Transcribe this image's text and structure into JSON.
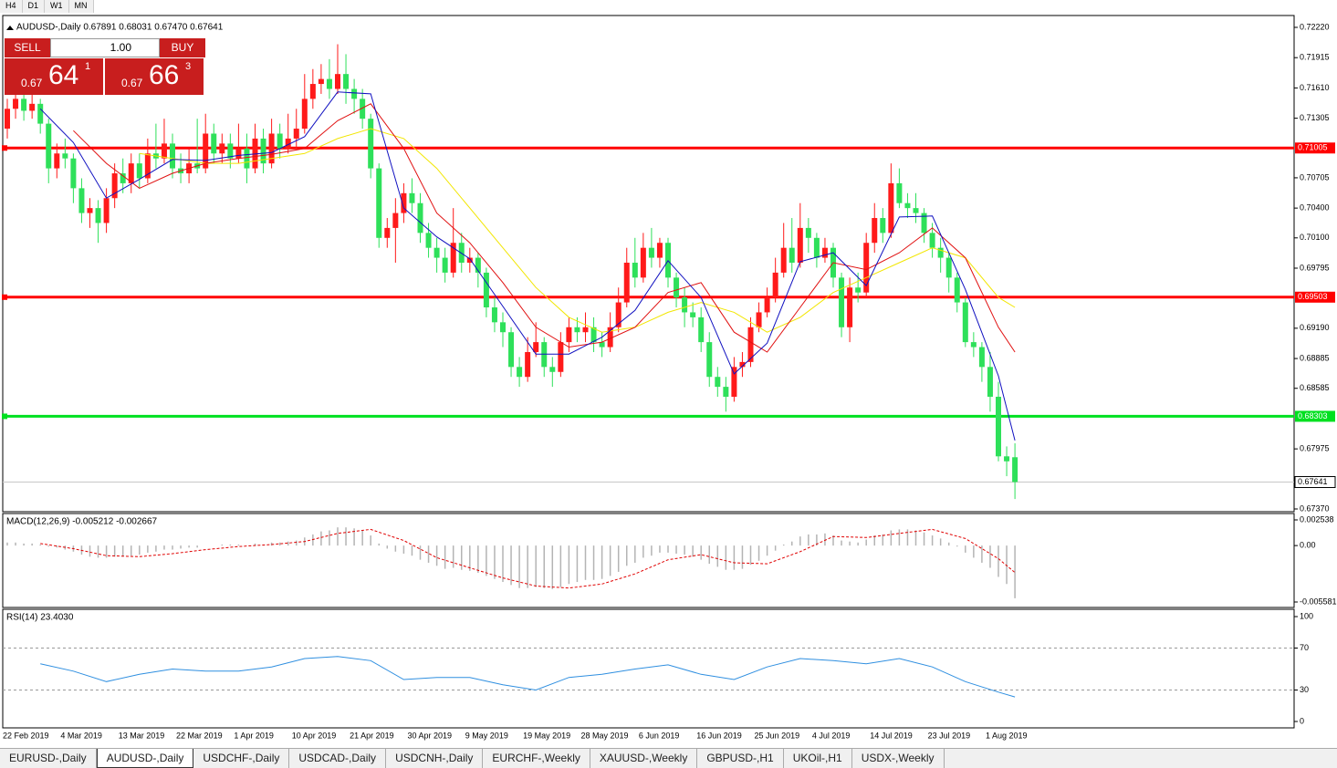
{
  "toolbar": [
    "H4",
    "D1",
    "W1",
    "MN"
  ],
  "trade_panel": {
    "sell": "SELL",
    "lots": "1.00",
    "buy": "BUY",
    "bid": {
      "prefix": "0.67",
      "pips": "64",
      "fraction": "1"
    },
    "ask": {
      "prefix": "0.67",
      "pips": "66",
      "fraction": "3"
    }
  },
  "tabs": [
    "EURUSD-,Daily",
    "AUDUSD-,Daily",
    "USDCHF-,Daily",
    "USDCAD-,Daily",
    "USDCNH-,Daily",
    "EURCHF-,Weekly",
    "XAUUSD-,Weekly",
    "GBPUSD-,H1",
    "UKOil-,H1",
    "USDX-,Weekly"
  ],
  "active_tab": 1,
  "chart_data": [
    {
      "type": "candlestick",
      "title": "AUDUSD-,Daily  0.67891 0.68031 0.67470 0.67641",
      "categories": [
        "22 Feb 2019",
        null,
        null,
        null,
        null,
        null,
        null,
        "4 Mar 2019",
        null,
        null,
        null,
        null,
        null,
        null,
        "13 Mar 2019",
        null,
        null,
        null,
        null,
        null,
        null,
        "22 Mar 2019",
        null,
        null,
        null,
        null,
        null,
        null,
        "1 Apr 2019",
        null,
        null,
        null,
        null,
        null,
        null,
        "10 Apr 2019",
        null,
        null,
        null,
        null,
        null,
        null,
        "21 Apr 2019",
        null,
        null,
        null,
        null,
        null,
        null,
        "30 Apr 2019",
        null,
        null,
        null,
        null,
        null,
        null,
        "9 May 2019",
        null,
        null,
        null,
        null,
        null,
        null,
        "19 May 2019",
        null,
        null,
        null,
        null,
        null,
        null,
        "28 May 2019",
        null,
        null,
        null,
        null,
        null,
        null,
        "6 Jun 2019",
        null,
        null,
        null,
        null,
        null,
        null,
        "16 Jun 2019",
        null,
        null,
        null,
        null,
        null,
        null,
        "25 Jun 2019",
        null,
        null,
        null,
        null,
        null,
        null,
        "4 Jul 2019",
        null,
        null,
        null,
        null,
        null,
        null,
        "14 Jul 2019",
        null,
        null,
        null,
        null,
        null,
        null,
        "23 Jul 2019",
        null,
        null,
        null,
        null,
        null,
        null,
        "1 Aug 2019",
        null,
        null,
        null
      ],
      "open": [
        0.712,
        0.714,
        0.715,
        0.7138,
        0.7145,
        0.7125,
        0.708,
        0.7095,
        0.709,
        0.706,
        0.7035,
        0.704,
        0.7025,
        0.705,
        0.7075,
        0.7065,
        0.7085,
        0.707,
        0.7095,
        0.709,
        0.7105,
        0.708,
        0.7075,
        0.7085,
        0.708,
        0.7115,
        0.7095,
        0.7105,
        0.709,
        0.71,
        0.708,
        0.711,
        0.7085,
        0.7115,
        0.71,
        0.711,
        0.712,
        0.715,
        0.7165,
        0.717,
        0.716,
        0.7175,
        0.716,
        0.715,
        0.713,
        0.708,
        0.701,
        0.702,
        0.7035,
        0.7055,
        0.7045,
        0.7015,
        0.7,
        0.699,
        0.6975,
        0.7005,
        0.6985,
        0.699,
        0.6975,
        0.694,
        0.6925,
        0.6915,
        0.688,
        0.687,
        0.6895,
        0.6905,
        0.688,
        0.6875,
        0.6905,
        0.692,
        0.6915,
        0.692,
        0.6905,
        0.69,
        0.692,
        0.6945,
        0.6985,
        0.697,
        0.7,
        0.699,
        0.7005,
        0.697,
        0.695,
        0.6935,
        0.693,
        0.6905,
        0.687,
        0.686,
        0.685,
        0.688,
        0.6885,
        0.692,
        0.6935,
        0.695,
        0.6975,
        0.7,
        0.6985,
        0.702,
        0.701,
        0.699,
        0.7,
        0.697,
        0.692,
        0.696,
        0.6955,
        0.7005,
        0.703,
        0.7015,
        0.7065,
        0.7045,
        0.704,
        0.7035,
        0.7015,
        0.7,
        0.699,
        0.697,
        0.6945,
        0.6905,
        0.69,
        0.688,
        0.685,
        0.679,
        0.67891
      ],
      "high": [
        0.715,
        0.716,
        0.7158,
        0.7155,
        0.715,
        0.713,
        0.7105,
        0.711,
        0.7095,
        0.707,
        0.705,
        0.7048,
        0.706,
        0.7085,
        0.709,
        0.7095,
        0.7095,
        0.711,
        0.7125,
        0.713,
        0.7115,
        0.7095,
        0.71,
        0.713,
        0.7135,
        0.7125,
        0.7115,
        0.7115,
        0.7125,
        0.7115,
        0.7125,
        0.712,
        0.713,
        0.7125,
        0.7135,
        0.714,
        0.7175,
        0.718,
        0.7185,
        0.719,
        0.7205,
        0.7195,
        0.717,
        0.716,
        0.7135,
        0.7085,
        0.703,
        0.705,
        0.7065,
        0.707,
        0.7055,
        0.7025,
        0.701,
        0.7,
        0.704,
        0.7015,
        0.7,
        0.6995,
        0.698,
        0.695,
        0.6935,
        0.692,
        0.689,
        0.691,
        0.6925,
        0.691,
        0.689,
        0.6915,
        0.693,
        0.693,
        0.6935,
        0.693,
        0.6915,
        0.6935,
        0.696,
        0.7,
        0.701,
        0.7015,
        0.702,
        0.701,
        0.701,
        0.6975,
        0.696,
        0.6945,
        0.694,
        0.6915,
        0.688,
        0.687,
        0.689,
        0.6895,
        0.693,
        0.6945,
        0.696,
        0.699,
        0.7025,
        0.703,
        0.7045,
        0.703,
        0.7015,
        0.701,
        0.7005,
        0.6975,
        0.697,
        0.6975,
        0.7015,
        0.7045,
        0.704,
        0.7085,
        0.708,
        0.7055,
        0.7055,
        0.704,
        0.7025,
        0.701,
        0.6995,
        0.6975,
        0.695,
        0.6915,
        0.6905,
        0.6895,
        0.6865,
        0.68,
        0.68031
      ],
      "low": [
        0.711,
        0.713,
        0.7128,
        0.713,
        0.7115,
        0.7065,
        0.707,
        0.708,
        0.7045,
        0.7025,
        0.702,
        0.7005,
        0.7015,
        0.704,
        0.7055,
        0.7055,
        0.706,
        0.7065,
        0.708,
        0.7085,
        0.707,
        0.7065,
        0.7065,
        0.7075,
        0.7075,
        0.7085,
        0.7085,
        0.708,
        0.7085,
        0.7065,
        0.7075,
        0.7075,
        0.708,
        0.709,
        0.7095,
        0.71,
        0.7115,
        0.714,
        0.7155,
        0.715,
        0.7155,
        0.7145,
        0.7135,
        0.712,
        0.707,
        0.7,
        0.7,
        0.6985,
        0.7025,
        0.7035,
        0.7005,
        0.699,
        0.6975,
        0.6965,
        0.697,
        0.6975,
        0.6975,
        0.696,
        0.693,
        0.6915,
        0.69,
        0.687,
        0.686,
        0.6865,
        0.689,
        0.687,
        0.686,
        0.687,
        0.6895,
        0.6905,
        0.6905,
        0.6895,
        0.689,
        0.6895,
        0.6915,
        0.694,
        0.696,
        0.6965,
        0.698,
        0.698,
        0.696,
        0.694,
        0.692,
        0.692,
        0.6895,
        0.686,
        0.685,
        0.6835,
        0.6845,
        0.687,
        0.688,
        0.6915,
        0.693,
        0.6945,
        0.697,
        0.6975,
        0.698,
        0.6995,
        0.698,
        0.6985,
        0.696,
        0.691,
        0.6905,
        0.6945,
        0.695,
        0.6995,
        0.7005,
        0.701,
        0.704,
        0.703,
        0.7025,
        0.7005,
        0.699,
        0.6975,
        0.6955,
        0.6935,
        0.69,
        0.689,
        0.6865,
        0.6835,
        0.6785,
        0.677,
        0.6747
      ],
      "close": [
        0.714,
        0.715,
        0.7138,
        0.7145,
        0.7125,
        0.708,
        0.7095,
        0.709,
        0.706,
        0.7035,
        0.704,
        0.7025,
        0.705,
        0.7075,
        0.7065,
        0.7085,
        0.707,
        0.7095,
        0.709,
        0.7105,
        0.708,
        0.7075,
        0.7085,
        0.708,
        0.7115,
        0.7095,
        0.7105,
        0.709,
        0.71,
        0.708,
        0.711,
        0.7085,
        0.7115,
        0.71,
        0.711,
        0.712,
        0.715,
        0.7165,
        0.717,
        0.716,
        0.7175,
        0.716,
        0.715,
        0.713,
        0.708,
        0.701,
        0.702,
        0.7035,
        0.7055,
        0.7045,
        0.7015,
        0.7,
        0.699,
        0.6975,
        0.7005,
        0.6985,
        0.699,
        0.6975,
        0.694,
        0.6925,
        0.6915,
        0.688,
        0.687,
        0.6895,
        0.6905,
        0.688,
        0.6875,
        0.6905,
        0.692,
        0.6915,
        0.692,
        0.6905,
        0.69,
        0.692,
        0.6945,
        0.6985,
        0.697,
        0.7,
        0.699,
        0.7005,
        0.697,
        0.695,
        0.6935,
        0.693,
        0.6905,
        0.687,
        0.686,
        0.685,
        0.688,
        0.6885,
        0.692,
        0.6935,
        0.695,
        0.6975,
        0.7,
        0.6985,
        0.702,
        0.701,
        0.699,
        0.7,
        0.697,
        0.692,
        0.696,
        0.6955,
        0.7005,
        0.703,
        0.7015,
        0.7065,
        0.7045,
        0.704,
        0.7035,
        0.7015,
        0.7,
        0.699,
        0.697,
        0.6945,
        0.6905,
        0.69,
        0.688,
        0.685,
        0.679,
        0.6785,
        0.67641
      ],
      "up_color": "#ff1a1a",
      "down_color": "#2ee05a",
      "ma_x": [
        4,
        8,
        12,
        16,
        20,
        24,
        28,
        32,
        36,
        40,
        44,
        48,
        52,
        56,
        60,
        64,
        68,
        72,
        76,
        80,
        84,
        88,
        92,
        96,
        100,
        104,
        108,
        112,
        116,
        120,
        122
      ],
      "moving_averages": [
        {
          "color": "#f2e600",
          "values": [
            null,
            null,
            null,
            0.7095,
            0.709,
            0.7085,
            0.7085,
            0.709,
            0.7095,
            0.711,
            0.712,
            0.711,
            0.708,
            0.704,
            0.7,
            0.696,
            0.693,
            0.6915,
            0.692,
            0.6935,
            0.6945,
            0.6935,
            0.6915,
            0.693,
            0.6955,
            0.697,
            0.6985,
            0.7,
            0.699,
            0.695,
            0.694
          ]
        },
        {
          "color": "#e01010",
          "values": [
            null,
            0.7118,
            0.7085,
            0.706,
            0.7075,
            0.7085,
            0.709,
            0.7094,
            0.71,
            0.7128,
            0.7145,
            0.71,
            0.7035,
            0.7005,
            0.6965,
            0.692,
            0.69,
            0.6905,
            0.692,
            0.6955,
            0.6965,
            0.6915,
            0.6895,
            0.694,
            0.6985,
            0.6978,
            0.6995,
            0.702,
            0.699,
            0.692,
            0.6895
          ]
        },
        {
          "color": "#1010c0",
          "values": [
            0.714,
            0.7106,
            0.705,
            0.7069,
            0.7089,
            0.7088,
            0.7093,
            0.7096,
            0.7112,
            0.7157,
            0.7155,
            0.704,
            0.7011,
            0.6989,
            0.6941,
            0.6893,
            0.6893,
            0.691,
            0.6937,
            0.6987,
            0.695,
            0.6873,
            0.6904,
            0.6986,
            0.6995,
            0.6962,
            0.7031,
            0.7032,
            0.6958,
            0.6871,
            0.6806
          ]
        }
      ],
      "levels": [
        {
          "value": 0.71005,
          "color": "#ff0000"
        },
        {
          "value": 0.69503,
          "color": "#ff0000"
        },
        {
          "value": 0.68303,
          "color": "#00e020"
        }
      ],
      "current_price": {
        "value": 0.67641,
        "color": "#c8c8c8"
      },
      "ylim": [
        0.6737,
        0.7222
      ],
      "yticks": [
        {
          "value": 0.7222,
          "label": "0.72220"
        },
        0.71915,
        {
          "value": 0.7161,
          "label": "0.71610"
        },
        0.71305,
        0.70705,
        {
          "value": 0.704,
          "label": "0.70400"
        },
        {
          "value": 0.701,
          "label": "0.70100"
        },
        0.69795,
        {
          "value": 0.6919,
          "label": "0.69190"
        },
        0.68885,
        0.68585,
        0.67975,
        {
          "value": 0.6737,
          "label": "0.67370"
        }
      ]
    },
    {
      "type": "macd",
      "title": "MACD(12,26,9) -0.005212 -0.002667",
      "histogram": [
        0.0003,
        0.0003,
        0.0002,
        0.0002,
        0.0001,
        -0.0001,
        -0.0002,
        -0.0004,
        -0.0006,
        -0.0009,
        -0.0011,
        -0.0012,
        -0.0012,
        -0.0011,
        -0.0011,
        -0.001,
        -0.0009,
        -0.0007,
        -0.0006,
        -0.0004,
        -0.0004,
        -0.0003,
        -0.0002,
        -0.0002,
        0,
        0,
        0.0001,
        0.0001,
        0.0001,
        0,
        0.0002,
        0.0001,
        0.0003,
        0.0003,
        0.0004,
        0.0005,
        0.0008,
        0.0011,
        0.0014,
        0.0015,
        0.0018,
        0.0018,
        0.0017,
        0.0015,
        0.001,
        0.0002,
        -0.0003,
        -0.0006,
        -0.0008,
        -0.001,
        -0.0014,
        -0.0017,
        -0.002,
        -0.0023,
        -0.0022,
        -0.0024,
        -0.0025,
        -0.0027,
        -0.003,
        -0.0033,
        -0.0036,
        -0.0039,
        -0.0042,
        -0.0042,
        -0.0041,
        -0.0042,
        -0.0043,
        -0.0041,
        -0.0038,
        -0.0036,
        -0.0034,
        -0.0034,
        -0.0033,
        -0.003,
        -0.0026,
        -0.002,
        -0.0017,
        -0.0012,
        -0.001,
        -0.0007,
        -0.0007,
        -0.0008,
        -0.0009,
        -0.0011,
        -0.0014,
        -0.0018,
        -0.0021,
        -0.0024,
        -0.0024,
        -0.0023,
        -0.0019,
        -0.0015,
        -0.001,
        -0.0005,
        0.0001,
        0.0004,
        0.0009,
        0.0011,
        0.0011,
        0.0012,
        0.001,
        0.0005,
        0.0004,
        0.0003,
        0.0006,
        0.001,
        0.0011,
        0.0015,
        0.0016,
        0.0016,
        0.0015,
        0.0013,
        0.001,
        0.0007,
        0.0003,
        -0.0001,
        -0.0007,
        -0.0012,
        -0.0017,
        -0.0022,
        -0.0031,
        -0.0038,
        -0.005212
      ],
      "histogram_color": "#b4b4b4",
      "signal": {
        "color": "#e00000",
        "x": [
          4,
          8,
          12,
          16,
          20,
          24,
          28,
          32,
          36,
          40,
          44,
          48,
          52,
          56,
          60,
          64,
          68,
          72,
          76,
          80,
          84,
          88,
          92,
          96,
          100,
          104,
          108,
          112,
          116,
          120,
          122
        ],
        "values": [
          0.0002,
          -0.0003,
          -0.001,
          -0.0011,
          -0.0008,
          -0.0004,
          -0.0001,
          0.0001,
          0.0004,
          0.0012,
          0.0016,
          0.0005,
          -0.0012,
          -0.0022,
          -0.0032,
          -0.004,
          -0.0042,
          -0.0038,
          -0.0028,
          -0.0014,
          -0.0009,
          -0.0017,
          -0.0018,
          -0.0006,
          0.0009,
          0.0008,
          0.0012,
          0.0016,
          0.0007,
          -0.0013,
          -0.002667
        ]
      },
      "ylim": [
        -0.005581,
        0.002538
      ],
      "yticks": [
        0.002538,
        {
          "value": 0,
          "label": "0.00"
        },
        -0.005581
      ]
    },
    {
      "type": "rsi",
      "title": "RSI(14) 23.4030",
      "x": [
        4,
        8,
        12,
        16,
        20,
        24,
        28,
        32,
        36,
        40,
        44,
        48,
        52,
        56,
        60,
        64,
        68,
        72,
        76,
        80,
        84,
        88,
        92,
        96,
        100,
        104,
        108,
        112,
        116,
        120,
        122
      ],
      "values": [
        55,
        48,
        38,
        45,
        50,
        48,
        48,
        52,
        60,
        62,
        58,
        40,
        42,
        42,
        35,
        30,
        42,
        45,
        50,
        54,
        45,
        40,
        52,
        60,
        58,
        55,
        60,
        52,
        38,
        28,
        23.403
      ],
      "color": "#2f8fe0",
      "levels": [
        70,
        30
      ],
      "ylim": [
        0,
        100
      ],
      "yticks": [
        100,
        70,
        30,
        0
      ]
    }
  ]
}
